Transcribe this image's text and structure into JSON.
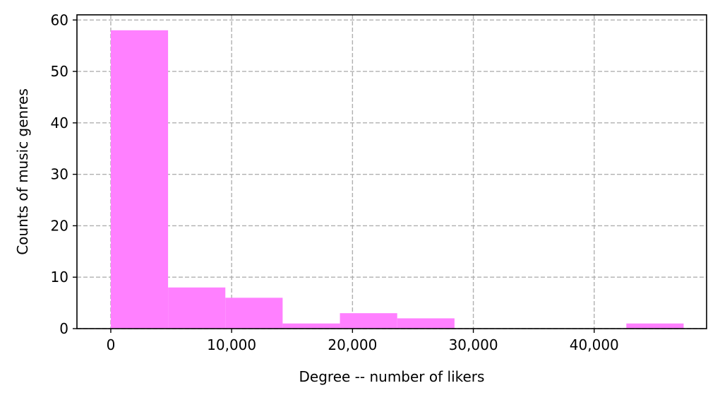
{
  "chart_data": {
    "type": "histogram",
    "xlabel": "Degree -- number of likers",
    "ylabel": "Counts of music genres",
    "xlim": [
      -2800,
      49300
    ],
    "ylim": [
      0,
      61
    ],
    "grid": true,
    "bar_color": "#ff80ff",
    "bins": [
      {
        "x0": 0,
        "x1": 4740,
        "count": 58
      },
      {
        "x0": 4740,
        "x1": 9480,
        "count": 8
      },
      {
        "x0": 9480,
        "x1": 14220,
        "count": 6
      },
      {
        "x0": 14220,
        "x1": 18960,
        "count": 1
      },
      {
        "x0": 18960,
        "x1": 23700,
        "count": 3
      },
      {
        "x0": 23700,
        "x1": 28440,
        "count": 2
      },
      {
        "x0": 28440,
        "x1": 33180,
        "count": 0
      },
      {
        "x0": 33180,
        "x1": 37920,
        "count": 0
      },
      {
        "x0": 37920,
        "x1": 42660,
        "count": 0
      },
      {
        "x0": 42660,
        "x1": 47400,
        "count": 1
      }
    ],
    "x_ticks": [
      {
        "value": 0,
        "label": "0"
      },
      {
        "value": 10000,
        "label": "10,000"
      },
      {
        "value": 20000,
        "label": "20,000"
      },
      {
        "value": 30000,
        "label": "30,000"
      },
      {
        "value": 40000,
        "label": "40,000"
      }
    ],
    "y_ticks": [
      {
        "value": 0,
        "label": "0"
      },
      {
        "value": 10,
        "label": "10"
      },
      {
        "value": 20,
        "label": "20"
      },
      {
        "value": 30,
        "label": "30"
      },
      {
        "value": 40,
        "label": "40"
      },
      {
        "value": 50,
        "label": "50"
      },
      {
        "value": 60,
        "label": "60"
      }
    ]
  }
}
